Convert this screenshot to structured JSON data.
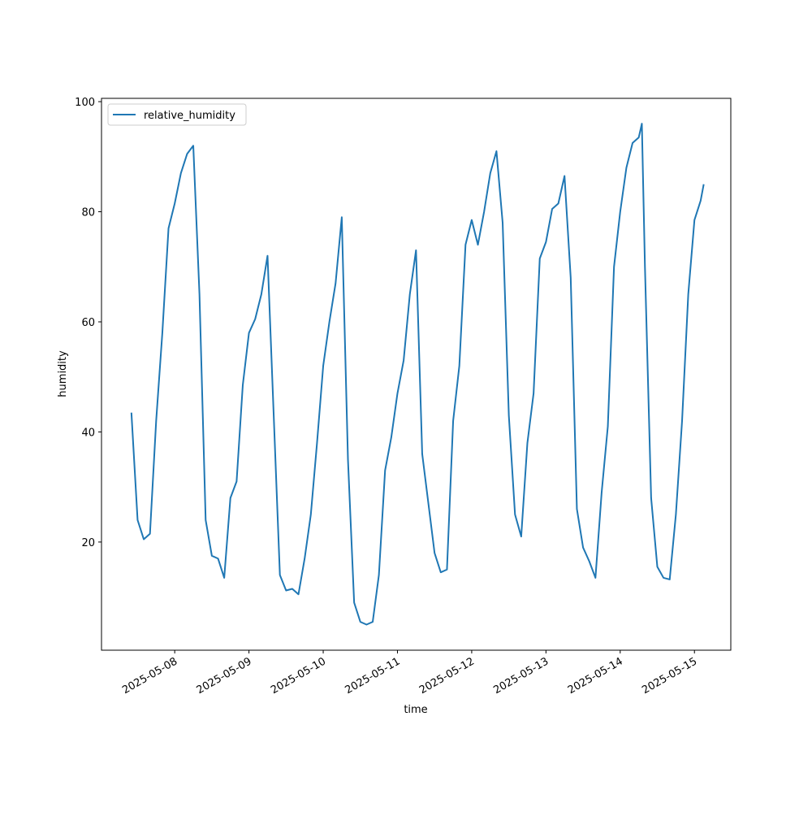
{
  "chart_data": {
    "type": "line",
    "x_label": "time",
    "y_label": "humidity",
    "x": [
      "2025-05-07 10:00",
      "2025-05-07 12:00",
      "2025-05-07 14:00",
      "2025-05-07 16:00",
      "2025-05-07 18:00",
      "2025-05-07 20:00",
      "2025-05-07 22:00",
      "2025-05-08 00:00",
      "2025-05-08 02:00",
      "2025-05-08 04:00",
      "2025-05-08 06:00",
      "2025-05-08 08:00",
      "2025-05-08 10:00",
      "2025-05-08 12:00",
      "2025-05-08 14:00",
      "2025-05-08 16:00",
      "2025-05-08 18:00",
      "2025-05-08 20:00",
      "2025-05-08 22:00",
      "2025-05-09 00:00",
      "2025-05-09 02:00",
      "2025-05-09 04:00",
      "2025-05-09 06:00",
      "2025-05-09 08:00",
      "2025-05-09 10:00",
      "2025-05-09 12:00",
      "2025-05-09 14:00",
      "2025-05-09 16:00",
      "2025-05-09 18:00",
      "2025-05-09 20:00",
      "2025-05-09 22:00",
      "2025-05-10 00:00",
      "2025-05-10 02:00",
      "2025-05-10 04:00",
      "2025-05-10 06:00",
      "2025-05-10 08:00",
      "2025-05-10 10:00",
      "2025-05-10 12:00",
      "2025-05-10 14:00",
      "2025-05-10 16:00",
      "2025-05-10 18:00",
      "2025-05-10 20:00",
      "2025-05-10 22:00",
      "2025-05-11 00:00",
      "2025-05-11 02:00",
      "2025-05-11 04:00",
      "2025-05-11 06:00",
      "2025-05-11 08:00",
      "2025-05-11 10:00",
      "2025-05-11 12:00",
      "2025-05-11 14:00",
      "2025-05-11 16:00",
      "2025-05-11 18:00",
      "2025-05-11 20:00",
      "2025-05-11 22:00",
      "2025-05-12 00:00",
      "2025-05-12 02:00",
      "2025-05-12 04:00",
      "2025-05-12 06:00",
      "2025-05-12 08:00",
      "2025-05-12 10:00",
      "2025-05-12 12:00",
      "2025-05-12 14:00",
      "2025-05-12 16:00",
      "2025-05-12 18:00",
      "2025-05-12 20:00",
      "2025-05-12 22:00",
      "2025-05-13 00:00",
      "2025-05-13 02:00",
      "2025-05-13 04:00",
      "2025-05-13 06:00",
      "2025-05-13 08:00",
      "2025-05-13 10:00",
      "2025-05-13 12:00",
      "2025-05-13 14:00",
      "2025-05-13 16:00",
      "2025-05-13 18:00",
      "2025-05-13 20:00",
      "2025-05-13 22:00",
      "2025-05-14 00:00",
      "2025-05-14 02:00",
      "2025-05-14 04:00",
      "2025-05-14 06:00",
      "2025-05-14 07:00",
      "2025-05-14 08:00",
      "2025-05-14 10:00",
      "2025-05-14 12:00",
      "2025-05-14 14:00",
      "2025-05-14 16:00",
      "2025-05-14 18:00",
      "2025-05-14 20:00",
      "2025-05-14 22:00",
      "2025-05-15 00:00",
      "2025-05-15 02:00",
      "2025-05-15 03:00"
    ],
    "series": [
      {
        "name": "relative_humidity",
        "color": "#1f77b4",
        "values": [
          43.5,
          24,
          20.5,
          21.5,
          42,
          58,
          77,
          81.5,
          87,
          90.5,
          92,
          65,
          24,
          17.5,
          17,
          13.5,
          28,
          31,
          48.5,
          58,
          60.5,
          65,
          72,
          43,
          14,
          11.2,
          11.5,
          10.5,
          17,
          25,
          38,
          52,
          60,
          67,
          79,
          35,
          9,
          5.5,
          5,
          5.5,
          14,
          33,
          39,
          47,
          53,
          65,
          73,
          36,
          27,
          18,
          14.5,
          15,
          42,
          52,
          74,
          78.5,
          74,
          80,
          87,
          91,
          78,
          43,
          25,
          21,
          38,
          47,
          71.5,
          74.5,
          80.5,
          81.5,
          86.5,
          68,
          26,
          19,
          16.5,
          13.5,
          29,
          41,
          70,
          80,
          88,
          92.5,
          93.5,
          96,
          70,
          28,
          15.5,
          13.5,
          13.2,
          25,
          42,
          65,
          78.5,
          82,
          85
        ]
      }
    ],
    "xlim": [
      "2025-05-07 00:20",
      "2025-05-15 11:45"
    ],
    "xticks": [
      "2025-05-08",
      "2025-05-09",
      "2025-05-10",
      "2025-05-11",
      "2025-05-12",
      "2025-05-13",
      "2025-05-14",
      "2025-05-15"
    ],
    "ylim": [
      0.35,
      100.6
    ],
    "yticks": [
      20,
      40,
      60,
      80,
      100
    ],
    "legend": "upper left"
  }
}
